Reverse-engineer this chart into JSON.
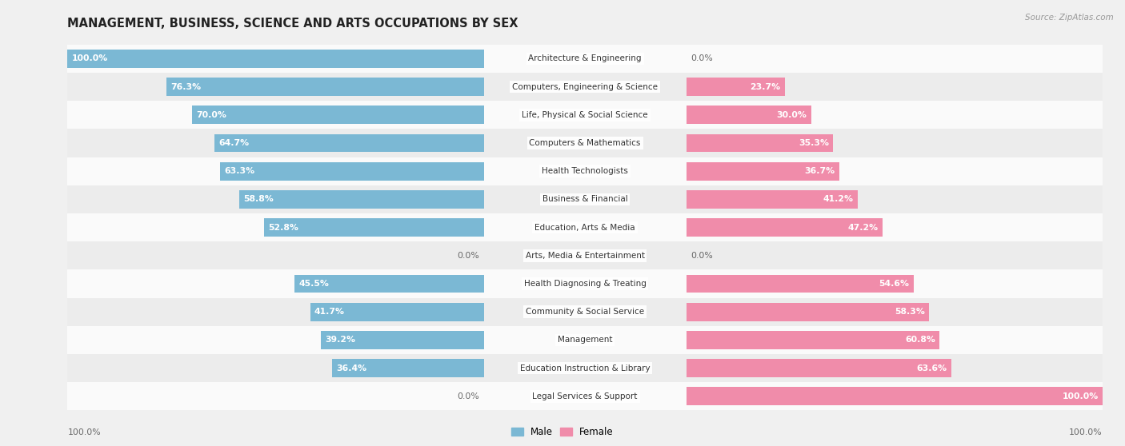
{
  "title": "MANAGEMENT, BUSINESS, SCIENCE AND ARTS OCCUPATIONS BY SEX",
  "source": "Source: ZipAtlas.com",
  "categories": [
    "Architecture & Engineering",
    "Computers, Engineering & Science",
    "Life, Physical & Social Science",
    "Computers & Mathematics",
    "Health Technologists",
    "Business & Financial",
    "Education, Arts & Media",
    "Arts, Media & Entertainment",
    "Health Diagnosing & Treating",
    "Community & Social Service",
    "Management",
    "Education Instruction & Library",
    "Legal Services & Support"
  ],
  "male": [
    100.0,
    76.3,
    70.0,
    64.7,
    63.3,
    58.8,
    52.8,
    0.0,
    45.5,
    41.7,
    39.2,
    36.4,
    0.0
  ],
  "female": [
    0.0,
    23.7,
    30.0,
    35.3,
    36.7,
    41.2,
    47.2,
    0.0,
    54.6,
    58.3,
    60.8,
    63.6,
    100.0
  ],
  "male_color": "#7bb8d4",
  "female_color": "#f08caa",
  "background_color": "#f0f0f0",
  "row_colors": [
    "#fafafa",
    "#ececec"
  ],
  "bar_height": 0.65,
  "figsize": [
    14.06,
    5.58
  ],
  "dpi": 100,
  "label_fontsize": 7.8,
  "title_fontsize": 10.5,
  "category_fontsize": 7.5,
  "legend_fontsize": 8.5
}
